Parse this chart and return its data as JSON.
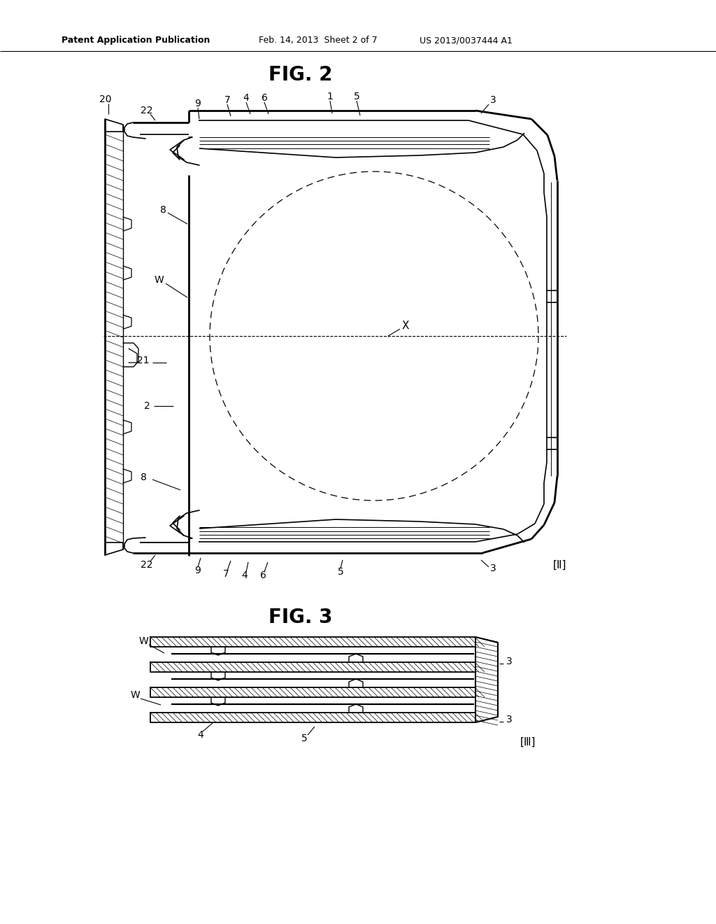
{
  "background_color": "#ffffff",
  "header_text": "Patent Application Publication",
  "header_date": "Feb. 14, 2013  Sheet 2 of 7",
  "header_patent": "US 2013/0037444 A1",
  "fig2_title": "FIG. 2",
  "fig3_title": "FIG. 3",
  "fig2_bracket": "[Ⅱ]",
  "fig3_bracket": "[Ⅲ]",
  "line_color": "#000000",
  "lw": 1.2,
  "tlw": 2.0
}
